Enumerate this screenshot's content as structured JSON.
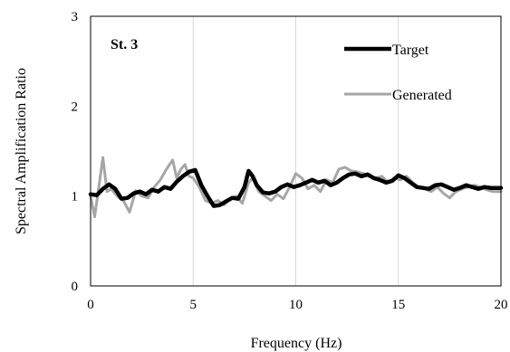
{
  "chart_data": {
    "type": "line",
    "title": "",
    "panel_label": "St. 3",
    "xlabel": "Frequency (Hz)",
    "ylabel": "Spectral  Amplification Ratio",
    "xlim": [
      0,
      20
    ],
    "ylim": [
      0,
      3
    ],
    "x_ticks": [
      0,
      5,
      10,
      15,
      20
    ],
    "y_ticks": [
      0,
      1,
      2,
      3
    ],
    "grid": "vertical",
    "legend_position": "top-right",
    "series": [
      {
        "name": "Target",
        "color": "#000000",
        "x": [
          0,
          0.3,
          0.6,
          0.9,
          1.2,
          1.5,
          1.8,
          2.1,
          2.4,
          2.7,
          3.0,
          3.3,
          3.6,
          3.9,
          4.2,
          4.5,
          4.8,
          5.1,
          5.4,
          5.7,
          6.0,
          6.3,
          6.6,
          6.9,
          7.2,
          7.5,
          7.7,
          7.9,
          8.1,
          8.4,
          8.7,
          9.0,
          9.3,
          9.6,
          9.9,
          10.2,
          10.5,
          10.8,
          11.1,
          11.4,
          11.7,
          12.0,
          12.3,
          12.6,
          12.9,
          13.2,
          13.5,
          13.8,
          14.1,
          14.4,
          14.7,
          15.0,
          15.3,
          15.6,
          15.9,
          16.2,
          16.5,
          16.8,
          17.1,
          17.4,
          17.7,
          18.0,
          18.3,
          18.6,
          18.9,
          19.2,
          19.5,
          19.8,
          20.0
        ],
        "y": [
          1.02,
          1.01,
          1.08,
          1.13,
          1.08,
          0.97,
          0.98,
          1.03,
          1.05,
          1.02,
          1.07,
          1.05,
          1.1,
          1.08,
          1.16,
          1.22,
          1.27,
          1.29,
          1.12,
          1.0,
          0.89,
          0.9,
          0.94,
          0.98,
          0.97,
          1.1,
          1.28,
          1.22,
          1.12,
          1.04,
          1.03,
          1.05,
          1.1,
          1.13,
          1.1,
          1.12,
          1.15,
          1.18,
          1.15,
          1.17,
          1.12,
          1.15,
          1.2,
          1.24,
          1.25,
          1.22,
          1.24,
          1.2,
          1.18,
          1.15,
          1.17,
          1.23,
          1.2,
          1.15,
          1.1,
          1.09,
          1.08,
          1.12,
          1.13,
          1.1,
          1.07,
          1.09,
          1.12,
          1.1,
          1.08,
          1.1,
          1.09,
          1.09,
          1.09
        ]
      },
      {
        "name": "Generated",
        "color": "#a6a6a6",
        "x": [
          0,
          0.2,
          0.4,
          0.6,
          0.8,
          1.0,
          1.3,
          1.6,
          1.9,
          2.2,
          2.5,
          2.8,
          3.1,
          3.4,
          3.7,
          4.0,
          4.2,
          4.4,
          4.6,
          4.8,
          5.0,
          5.3,
          5.6,
          5.9,
          6.2,
          6.5,
          6.8,
          7.1,
          7.4,
          7.7,
          7.9,
          8.2,
          8.5,
          8.8,
          9.1,
          9.4,
          9.7,
          10.0,
          10.3,
          10.6,
          10.9,
          11.2,
          11.5,
          11.8,
          12.1,
          12.4,
          12.7,
          13.0,
          13.3,
          13.6,
          13.9,
          14.2,
          14.5,
          14.8,
          15.1,
          15.4,
          15.7,
          16.0,
          16.3,
          16.6,
          16.9,
          17.2,
          17.5,
          17.8,
          18.1,
          18.4,
          18.7,
          19.0,
          19.3,
          19.6,
          20.0
        ],
        "y": [
          1.0,
          0.77,
          1.1,
          1.43,
          1.05,
          1.08,
          1.0,
          0.95,
          0.82,
          1.06,
          1.0,
          0.98,
          1.1,
          1.18,
          1.3,
          1.4,
          1.2,
          1.3,
          1.35,
          1.22,
          1.2,
          1.1,
          0.95,
          0.92,
          0.95,
          0.9,
          0.97,
          1.0,
          0.92,
          1.15,
          1.2,
          1.05,
          1.0,
          0.95,
          1.02,
          0.97,
          1.1,
          1.25,
          1.2,
          1.08,
          1.12,
          1.05,
          1.18,
          1.15,
          1.3,
          1.32,
          1.28,
          1.27,
          1.25,
          1.22,
          1.2,
          1.22,
          1.15,
          1.2,
          1.18,
          1.22,
          1.15,
          1.1,
          1.08,
          1.05,
          1.1,
          1.03,
          0.98,
          1.05,
          1.08,
          1.1,
          1.12,
          1.1,
          1.07,
          1.05,
          1.05
        ]
      }
    ]
  }
}
